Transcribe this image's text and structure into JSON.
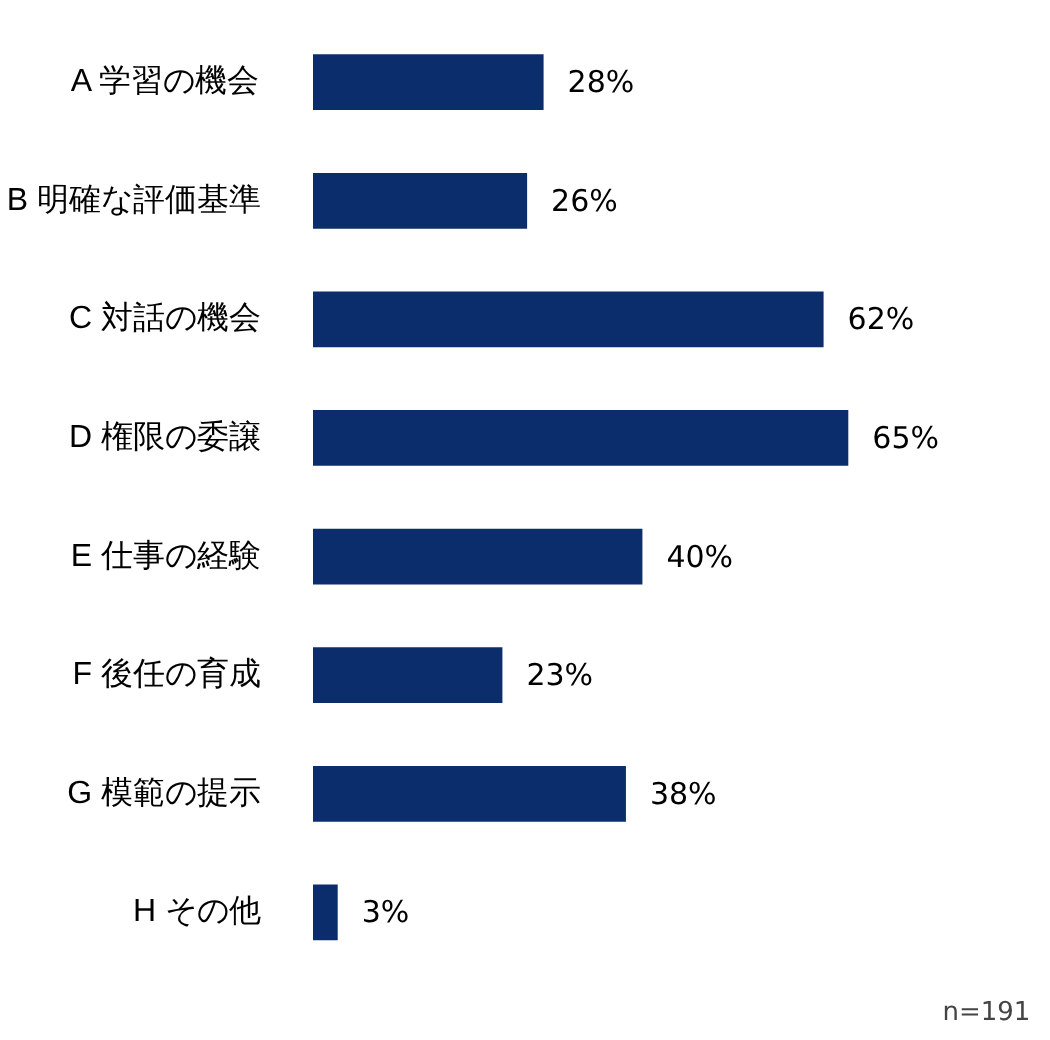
{
  "chart_data": {
    "type": "bar",
    "orientation": "horizontal",
    "categories": [
      "A 学習の機会",
      "B 明確な評価基準",
      "C 対話の機会",
      "D 権限の委譲",
      "E 仕事の経験",
      "F 後任の育成",
      "G 模範の提示",
      "H その他"
    ],
    "values": [
      28,
      26,
      62,
      65,
      40,
      23,
      38,
      3
    ],
    "value_labels": [
      "28%",
      "26%",
      "62%",
      "65%",
      "40%",
      "23%",
      "38%",
      "3%"
    ],
    "color": "#0b2d6b",
    "grid": false,
    "annotations": [
      "n=191"
    ]
  }
}
